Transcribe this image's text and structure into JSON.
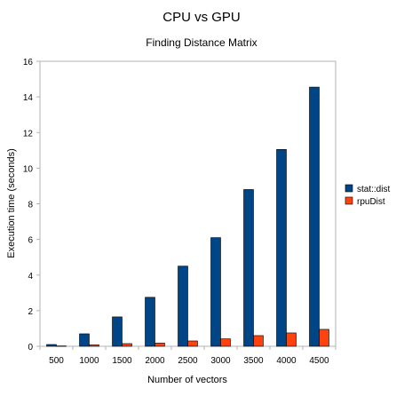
{
  "chart_data": {
    "type": "bar",
    "title": "CPU vs GPU",
    "subtitle": "Finding Distance Matrix",
    "xlabel": "Number of vectors",
    "ylabel": "Execution time (seconds)",
    "categories": [
      "500",
      "1000",
      "1500",
      "2000",
      "2500",
      "3000",
      "3500",
      "4000",
      "4500"
    ],
    "ylim": [
      0,
      16
    ],
    "yticks": [
      "0",
      "2",
      "4",
      "6",
      "8",
      "10",
      "12",
      "14",
      "16"
    ],
    "grid": false,
    "legend_position": "right",
    "series": [
      {
        "name": "stat::dist",
        "color": "#004586",
        "values": [
          0.1,
          0.7,
          1.65,
          2.75,
          4.5,
          6.1,
          8.8,
          11.05,
          14.55
        ]
      },
      {
        "name": "rpuDist",
        "color": "#ff420e",
        "values": [
          0.02,
          0.08,
          0.15,
          0.18,
          0.3,
          0.42,
          0.6,
          0.75,
          0.95
        ]
      }
    ]
  }
}
